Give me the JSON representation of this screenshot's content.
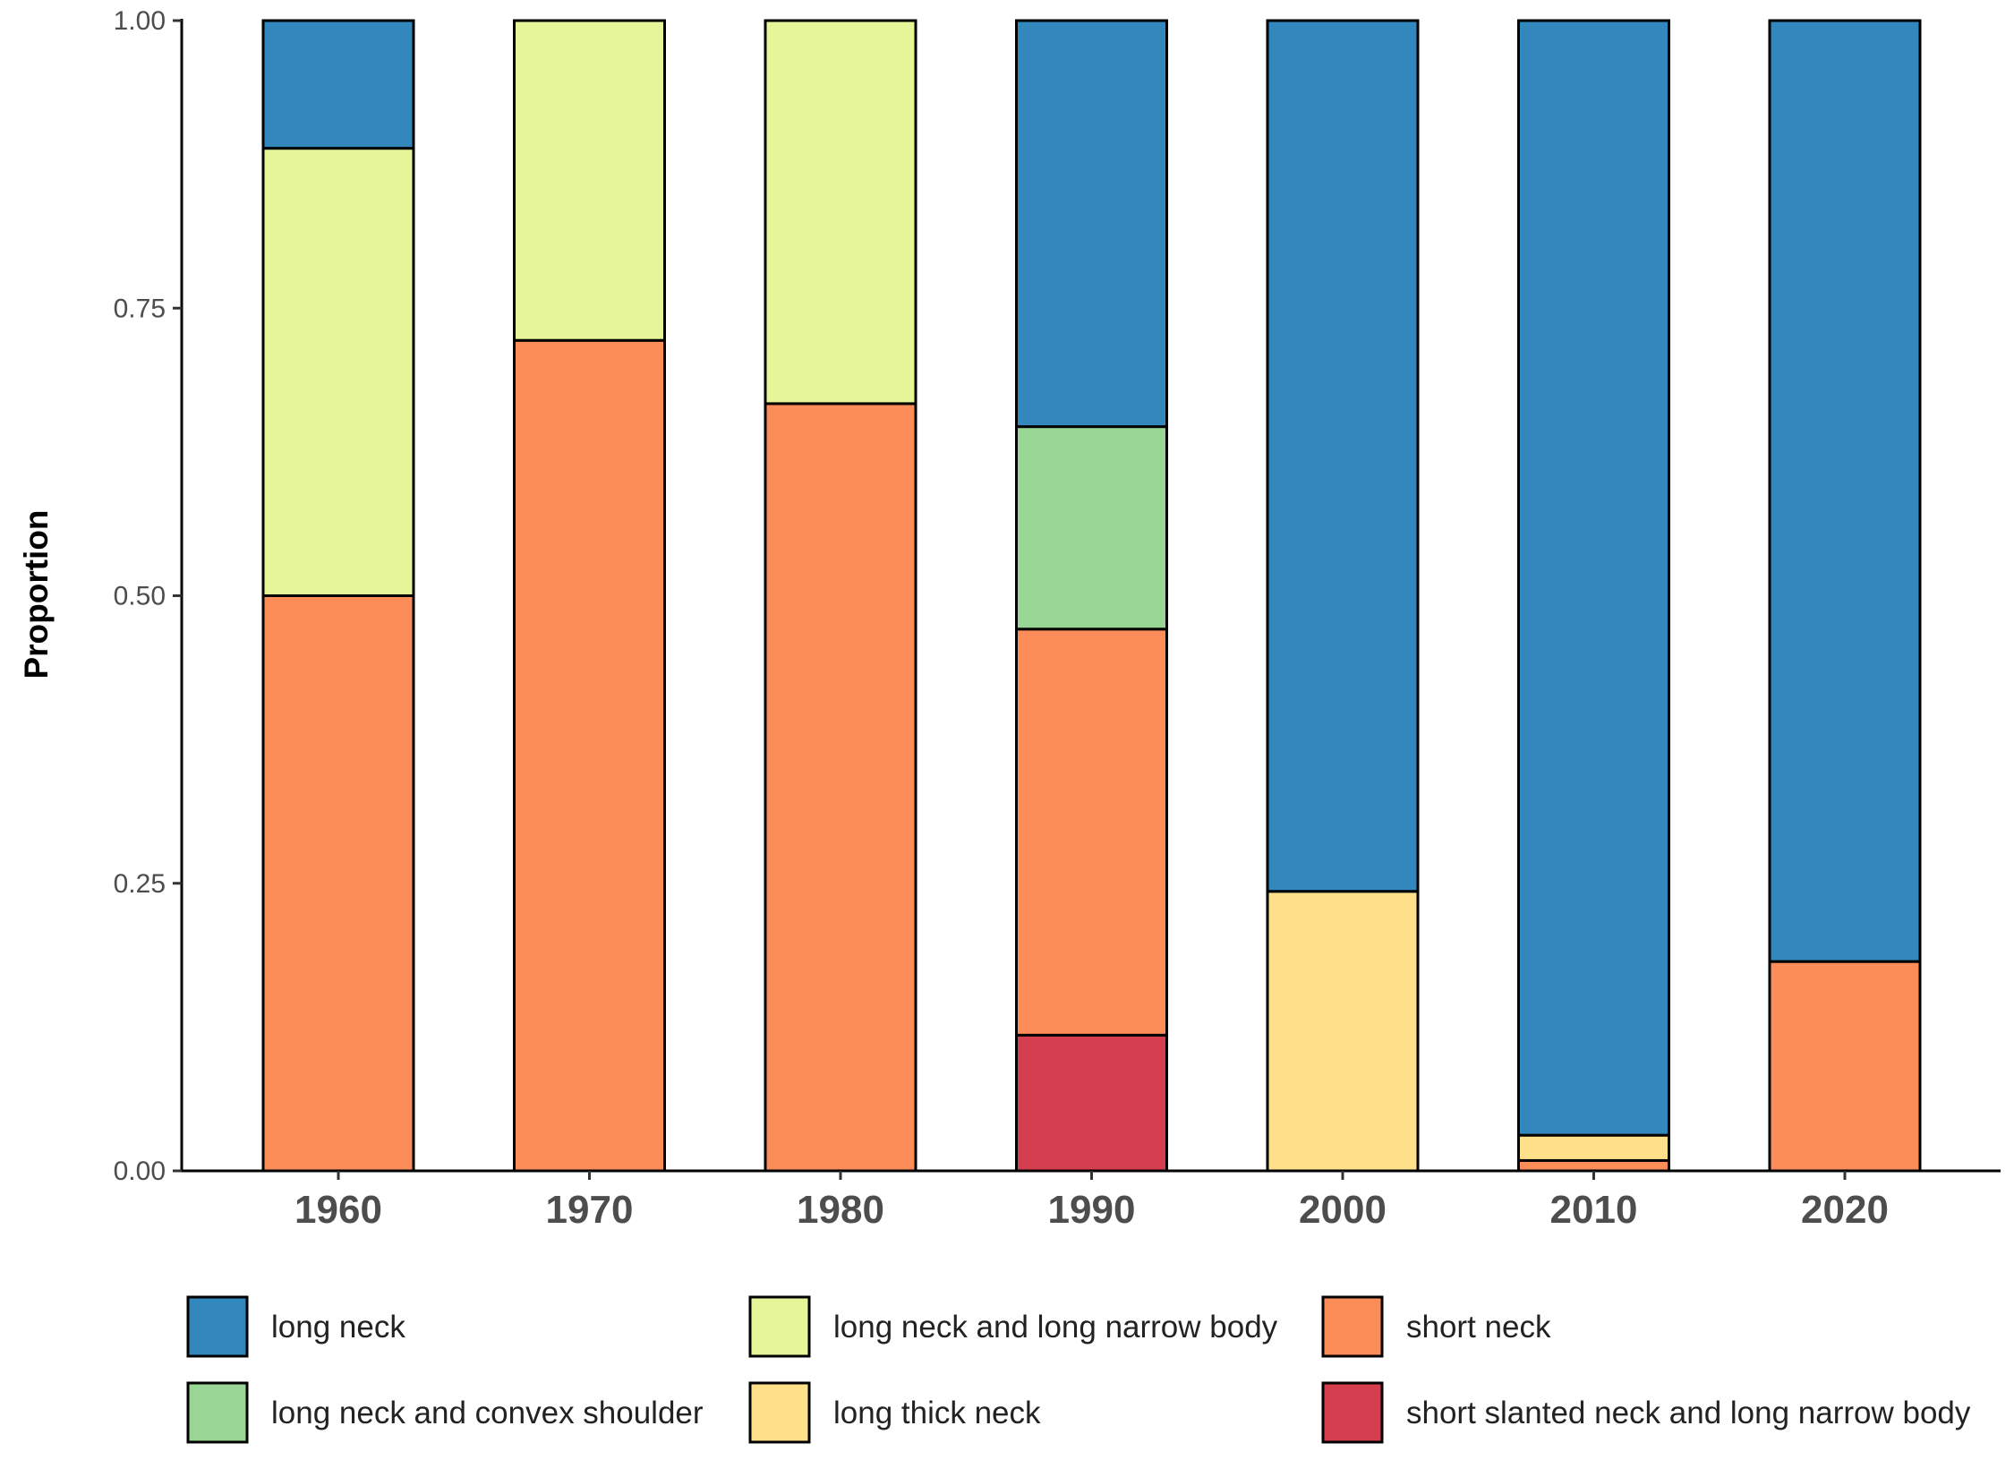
{
  "chart_data": {
    "type": "bar",
    "stacked": true,
    "title": "",
    "xlabel": "",
    "ylabel": "Proportion",
    "ylim": [
      0,
      1
    ],
    "yticks": [
      "0.00",
      "0.25",
      "0.50",
      "0.75",
      "1.00"
    ],
    "categories": [
      "1960",
      "1970",
      "1980",
      "1990",
      "2000",
      "2010",
      "2020"
    ],
    "legend_position": "bottom",
    "series": [
      {
        "name": "short slanted neck and long narrow body",
        "color": "#d53e4f",
        "values": [
          0,
          0,
          0,
          0.118,
          0,
          0,
          0
        ]
      },
      {
        "name": "short neck",
        "color": "#fc8d59",
        "values": [
          0.5,
          0.722,
          0.667,
          0.353,
          0,
          0.009,
          0.182
        ]
      },
      {
        "name": "long thick neck",
        "color": "#fee08b",
        "values": [
          0,
          0,
          0,
          0,
          0.243,
          0.022,
          0
        ]
      },
      {
        "name": "long neck and long narrow body",
        "color": "#e6f598",
        "values": [
          0.389,
          0.278,
          0.333,
          0,
          0,
          0,
          0
        ]
      },
      {
        "name": "long neck and convex shoulder",
        "color": "#99d594",
        "values": [
          0,
          0,
          0,
          0.176,
          0,
          0,
          0
        ]
      },
      {
        "name": "long neck",
        "color": "#3288bd",
        "values": [
          0.111,
          0,
          0,
          0.353,
          0.757,
          0.969,
          0.818
        ]
      }
    ],
    "legend_order": [
      "long neck",
      "long neck and long narrow body",
      "short neck",
      "long neck and convex shoulder",
      "long thick neck",
      "short slanted neck and long narrow body"
    ]
  }
}
